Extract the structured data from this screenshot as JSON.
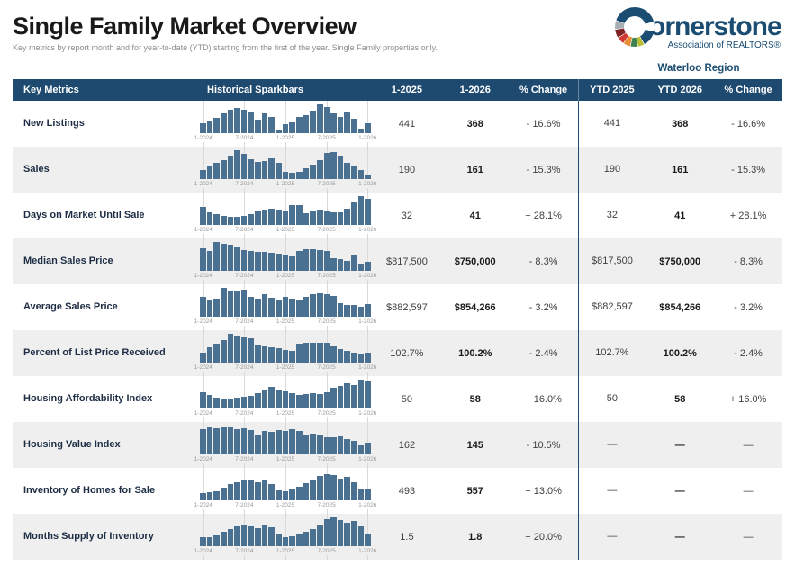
{
  "header": {
    "title": "Single Family Market Overview",
    "subtitle": "Key metrics by report month and for year-to-date (YTD) starting from the first of the year. Single Family properties only.",
    "logo": {
      "brand": "Cornerstone",
      "brand_rest": "ornerstone",
      "tagline": "Association of REALTORS®",
      "region": "Waterloo Region"
    }
  },
  "table": {
    "columns": [
      "Key Metrics",
      "Historical Sparkbars",
      "1-2025",
      "1-2026",
      "% Change",
      "YTD 2025",
      "YTD 2026",
      "% Change"
    ],
    "rows": [
      {
        "metric": "New Listings",
        "values": [
          "441",
          "368",
          "- 16.6%",
          "441",
          "368",
          "- 16.6%"
        ]
      },
      {
        "metric": "Sales",
        "values": [
          "190",
          "161",
          "- 15.3%",
          "190",
          "161",
          "- 15.3%"
        ]
      },
      {
        "metric": "Days on Market Until Sale",
        "values": [
          "32",
          "41",
          "+ 28.1%",
          "32",
          "41",
          "+ 28.1%"
        ]
      },
      {
        "metric": "Median Sales Price",
        "values": [
          "$817,500",
          "$750,000",
          "- 8.3%",
          "$817,500",
          "$750,000",
          "- 8.3%"
        ]
      },
      {
        "metric": "Average Sales Price",
        "values": [
          "$882,597",
          "$854,266",
          "- 3.2%",
          "$882,597",
          "$854,266",
          "- 3.2%"
        ]
      },
      {
        "metric": "Percent of List Price Received",
        "values": [
          "102.7%",
          "100.2%",
          "- 2.4%",
          "102.7%",
          "100.2%",
          "- 2.4%"
        ]
      },
      {
        "metric": "Housing Affordability Index",
        "values": [
          "50",
          "58",
          "+ 16.0%",
          "50",
          "58",
          "+ 16.0%"
        ]
      },
      {
        "metric": "Housing Value Index",
        "values": [
          "162",
          "145",
          "- 10.5%",
          "—",
          "—",
          "—"
        ]
      },
      {
        "metric": "Inventory of Homes for Sale",
        "values": [
          "493",
          "557",
          "+ 13.0%",
          "—",
          "—",
          "—"
        ]
      },
      {
        "metric": "Months Supply of Inventory",
        "values": [
          "1.5",
          "1.8",
          "+ 20.0%",
          "—",
          "—",
          "—"
        ]
      }
    ]
  },
  "chart_data": {
    "type": "bar",
    "note": "Historical monthly sparkbars, Jan 2024 through Jan 2026; values are relative bar heights (percent of row maximum)",
    "x_ticks": [
      "1-2024",
      "7-2024",
      "1-2025",
      "7-2025",
      "1-2026"
    ],
    "x_tick_positions_pct": [
      2,
      26,
      50,
      74,
      98
    ],
    "series": [
      {
        "name": "New Listings",
        "values": [
          35,
          45,
          52,
          70,
          82,
          86,
          80,
          72,
          48,
          68,
          55,
          14,
          30,
          36,
          55,
          62,
          78,
          100,
          92,
          70,
          55,
          76,
          50,
          15,
          35
        ]
      },
      {
        "name": "Sales",
        "values": [
          30,
          45,
          55,
          65,
          82,
          100,
          86,
          70,
          60,
          62,
          72,
          55,
          25,
          22,
          26,
          36,
          50,
          66,
          90,
          95,
          80,
          55,
          45,
          30,
          15
        ]
      },
      {
        "name": "Days on Market Until Sale",
        "values": [
          62,
          44,
          36,
          32,
          28,
          28,
          32,
          36,
          46,
          52,
          55,
          52,
          50,
          68,
          70,
          42,
          46,
          52,
          48,
          45,
          44,
          56,
          78,
          100,
          92
        ]
      },
      {
        "name": "Median Sales Price",
        "values": [
          78,
          68,
          100,
          95,
          90,
          80,
          72,
          68,
          65,
          65,
          64,
          58,
          55,
          52,
          68,
          75,
          75,
          72,
          70,
          45,
          42,
          35,
          55,
          25,
          30
        ]
      },
      {
        "name": "Average Sales Price",
        "values": [
          70,
          55,
          62,
          100,
          92,
          88,
          95,
          70,
          62,
          78,
          65,
          58,
          68,
          62,
          55,
          70,
          78,
          80,
          78,
          72,
          48,
          40,
          42,
          35,
          45
        ]
      },
      {
        "name": "Percent of List Price Received",
        "values": [
          35,
          52,
          65,
          78,
          100,
          95,
          88,
          85,
          62,
          55,
          52,
          50,
          45,
          40,
          65,
          68,
          70,
          70,
          68,
          55,
          48,
          42,
          35,
          28,
          35
        ]
      },
      {
        "name": "Housing Affordability Index",
        "values": [
          55,
          46,
          38,
          34,
          32,
          36,
          40,
          44,
          52,
          62,
          75,
          62,
          58,
          52,
          48,
          50,
          52,
          50,
          55,
          72,
          78,
          88,
          82,
          100,
          95
        ]
      },
      {
        "name": "Housing Value Index",
        "values": [
          88,
          95,
          92,
          95,
          95,
          88,
          90,
          85,
          70,
          82,
          78,
          85,
          80,
          88,
          82,
          70,
          72,
          65,
          60,
          58,
          62,
          52,
          48,
          32,
          42
        ]
      },
      {
        "name": "Inventory of Homes for Sale",
        "values": [
          25,
          28,
          32,
          45,
          55,
          62,
          68,
          68,
          62,
          68,
          55,
          35,
          30,
          40,
          48,
          58,
          72,
          85,
          90,
          88,
          75,
          80,
          62,
          42,
          38
        ]
      },
      {
        "name": "Months Supply of Inventory",
        "values": [
          30,
          32,
          38,
          50,
          60,
          70,
          72,
          68,
          62,
          72,
          65,
          42,
          30,
          35,
          42,
          50,
          60,
          75,
          95,
          100,
          92,
          80,
          88,
          70,
          40
        ]
      }
    ]
  },
  "colors": {
    "header_bg": "#1e4a70",
    "bar": "#4a7191",
    "brand_navy": "#1b4d73",
    "row_alt": "#efefef",
    "gridline": "#d9d9d9"
  }
}
